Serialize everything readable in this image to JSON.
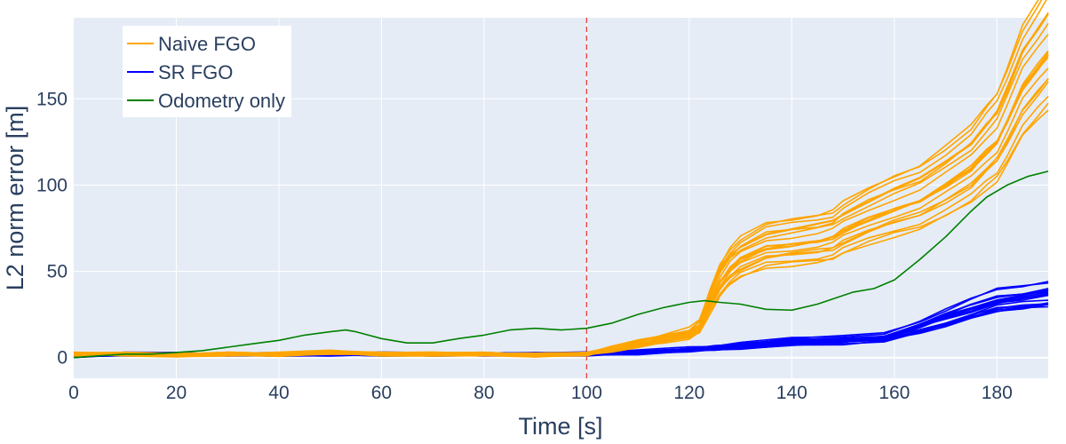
{
  "chart_data": {
    "type": "line",
    "title": "",
    "xlabel": "Time [s]",
    "ylabel": "L2 norm error [m]",
    "xlim": [
      0,
      190
    ],
    "ylim": [
      -12,
      197
    ],
    "x_ticks": [
      0,
      20,
      40,
      60,
      80,
      100,
      120,
      140,
      160,
      180
    ],
    "y_ticks": [
      0,
      50,
      100,
      150
    ],
    "grid": true,
    "legend_position": "top-left",
    "legend": [
      {
        "name": "Naive FGO",
        "color": "#FFA500"
      },
      {
        "name": "SR FGO",
        "color": "#0000FF"
      },
      {
        "name": "Odometry only",
        "color": "#008000"
      }
    ],
    "vertical_marker": {
      "x": 100,
      "color": "#E8413A",
      "style": "dashed"
    },
    "series": [
      {
        "name": "Odometry only",
        "color": "#008000",
        "x": [
          0,
          5,
          10,
          15,
          20,
          25,
          30,
          35,
          40,
          45,
          50,
          53,
          55,
          60,
          65,
          70,
          75,
          80,
          85,
          90,
          95,
          100,
          105,
          110,
          115,
          120,
          123,
          126,
          130,
          135,
          140,
          145,
          150,
          152,
          156,
          160,
          165,
          170,
          175,
          178,
          182,
          186,
          190
        ],
        "y": [
          0,
          1,
          2,
          2,
          3,
          4,
          6,
          8,
          10,
          13,
          15,
          16,
          15,
          11,
          8.5,
          8.5,
          11,
          13,
          16,
          17,
          16,
          17,
          20,
          25,
          29,
          32,
          33,
          32,
          31,
          28,
          27.5,
          31,
          36,
          38,
          40,
          45,
          57,
          70,
          85,
          93,
          100,
          105,
          108
        ]
      },
      {
        "name": "Naive FGO",
        "color": "#FFA500",
        "x": [
          0,
          10,
          20,
          30,
          40,
          50,
          60,
          70,
          80,
          90,
          100,
          105,
          110,
          115,
          120,
          122,
          124,
          126,
          128,
          130,
          135,
          140,
          145,
          148,
          150,
          155,
          160,
          165,
          170,
          175,
          178,
          180,
          182,
          185,
          188,
          190
        ],
        "y": [
          2,
          2,
          1.5,
          2,
          2,
          3,
          2,
          2,
          2,
          1.5,
          2,
          5,
          8,
          11,
          14,
          18,
          32,
          45,
          53,
          58,
          65,
          67,
          69,
          71,
          75,
          82,
          88,
          93,
          102,
          112,
          122,
          128,
          140,
          160,
          172,
          180
        ],
        "replicates": 20
      },
      {
        "name": "SR FGO",
        "color": "#0000FF",
        "x": [
          0,
          10,
          20,
          30,
          40,
          50,
          60,
          70,
          80,
          90,
          100,
          110,
          120,
          125,
          130,
          140,
          150,
          158,
          165,
          170,
          175,
          180,
          185,
          190
        ],
        "y": [
          1,
          2,
          2,
          2,
          2,
          2,
          2,
          2,
          2,
          2,
          2,
          3,
          5,
          6,
          7,
          9,
          10,
          12,
          18,
          23,
          28,
          33,
          35,
          37
        ],
        "replicates": 20
      }
    ]
  }
}
